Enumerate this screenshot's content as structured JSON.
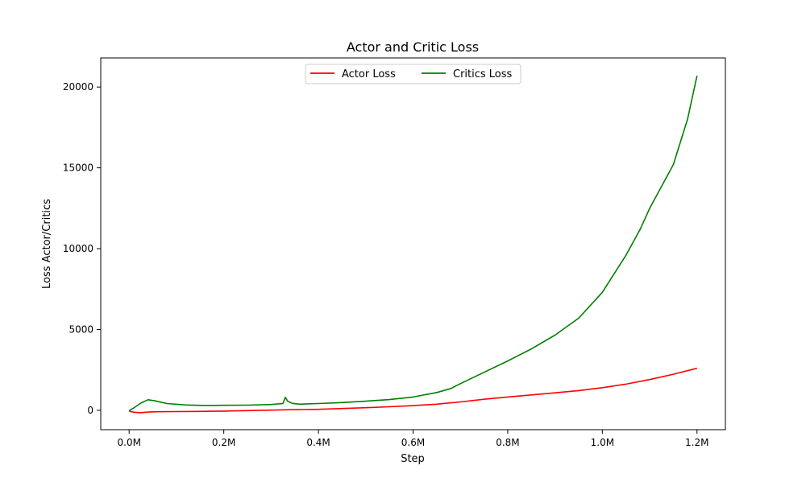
{
  "chart_data": {
    "type": "line",
    "title": "Actor and Critic Loss",
    "xlabel": "Step",
    "ylabel": "Loss Actor/Critics",
    "xlim": [
      -60000,
      1260000
    ],
    "ylim": [
      -1200,
      21800
    ],
    "xticks": [
      0,
      200000,
      400000,
      600000,
      800000,
      1000000,
      1200000
    ],
    "xtick_labels": [
      "0.0M",
      "0.2M",
      "0.4M",
      "0.6M",
      "0.8M",
      "1.0M",
      "1.2M"
    ],
    "yticks": [
      0,
      5000,
      10000,
      15000,
      20000
    ],
    "ytick_labels": [
      "0",
      "5000",
      "10000",
      "15000",
      "20000"
    ],
    "grid": false,
    "legend_position": "top-center",
    "series": [
      {
        "name": "Actor Loss",
        "color": "#ff0000",
        "x": [
          0,
          10000,
          25000,
          40000,
          60000,
          100000,
          150000,
          200000,
          250000,
          300000,
          330000,
          350000,
          400000,
          450000,
          500000,
          550000,
          600000,
          650000,
          700000,
          750000,
          800000,
          850000,
          900000,
          950000,
          1000000,
          1050000,
          1100000,
          1150000,
          1200000
        ],
        "values": [
          -50,
          -120,
          -150,
          -110,
          -90,
          -80,
          -70,
          -50,
          -20,
          10,
          30,
          40,
          60,
          110,
          160,
          220,
          290,
          380,
          520,
          680,
          820,
          950,
          1080,
          1220,
          1400,
          1620,
          1900,
          2230,
          2600
        ]
      },
      {
        "name": "Critics Loss",
        "color": "#008000",
        "x": [
          0,
          10000,
          25000,
          40000,
          55000,
          80000,
          120000,
          160000,
          200000,
          250000,
          300000,
          325000,
          330000,
          335000,
          345000,
          360000,
          400000,
          450000,
          500000,
          550000,
          600000,
          650000,
          680000,
          700000,
          750000,
          800000,
          850000,
          900000,
          950000,
          1000000,
          1050000,
          1080000,
          1100000,
          1150000,
          1180000,
          1200000
        ],
        "values": [
          -20,
          150,
          450,
          650,
          580,
          420,
          330,
          300,
          310,
          320,
          360,
          420,
          800,
          560,
          430,
          380,
          420,
          480,
          560,
          660,
          820,
          1100,
          1350,
          1650,
          2350,
          3050,
          3800,
          4650,
          5700,
          7300,
          9600,
          11200,
          12500,
          15200,
          18000,
          20700
        ]
      }
    ]
  }
}
